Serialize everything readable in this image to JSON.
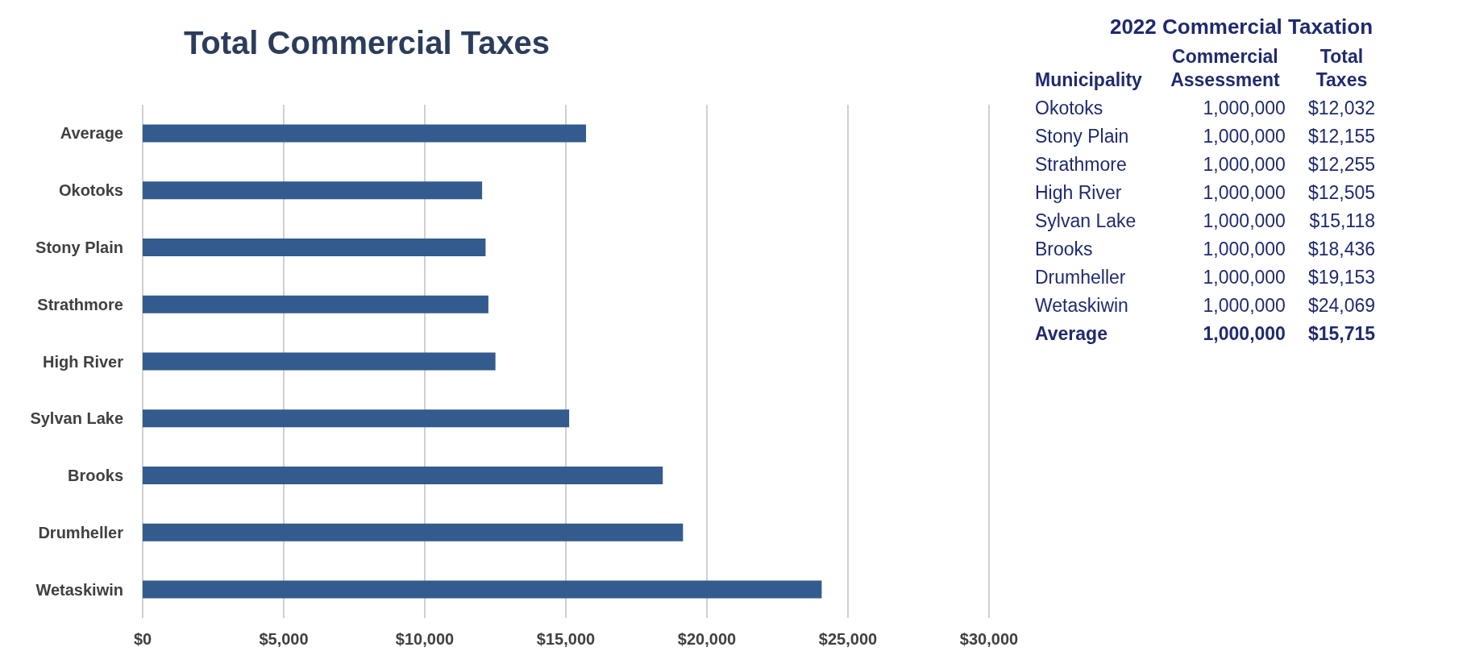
{
  "chart_data": [
    {
      "type": "bar",
      "orientation": "horizontal",
      "title": "Total Commercial Taxes",
      "categories": [
        "Average",
        "Okotoks",
        "Stony Plain",
        "Strathmore",
        "High River",
        "Sylvan Lake",
        "Brooks",
        "Drumheller",
        "Wetaskiwin"
      ],
      "values": [
        15715,
        12032,
        12155,
        12255,
        12505,
        15118,
        18436,
        19153,
        24069
      ],
      "color": "#335b8e",
      "xlim": [
        0,
        30000
      ],
      "xticks": [
        {
          "value": 0,
          "label": "$0"
        },
        {
          "value": 5000,
          "label": "$5,000"
        },
        {
          "value": 10000,
          "label": "$10,000"
        },
        {
          "value": 15000,
          "label": "$15,000"
        },
        {
          "value": 20000,
          "label": "$20,000"
        },
        {
          "value": 25000,
          "label": "$25,000"
        },
        {
          "value": 30000,
          "label": "$30,000"
        }
      ],
      "grid": "x"
    },
    {
      "type": "other",
      "title": "2022 Commercial Taxation",
      "annotations": [
        "Municipality",
        "Commercial Assessment",
        "Total Taxes",
        "Okotoks",
        "1,000,000",
        "$12,032",
        "Stony Plain",
        "1,000,000",
        "$12,155",
        "Strathmore",
        "1,000,000",
        "$12,255",
        "High River",
        "1,000,000",
        "$12,505",
        "Sylvan Lake",
        "1,000,000",
        "$15,118",
        "Brooks",
        "1,000,000",
        "$18,436",
        "Drumheller",
        "1,000,000",
        "$19,153",
        "Wetaskiwin",
        "1,000,000",
        "$24,069",
        "Average",
        "1,000,000",
        "$15,715"
      ]
    }
  ]
}
